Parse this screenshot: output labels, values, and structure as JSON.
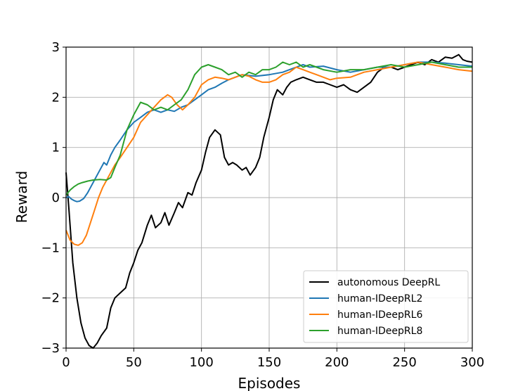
{
  "chart_data": {
    "type": "line",
    "title": "",
    "xlabel": "Episodes",
    "ylabel": "Reward",
    "xlim": [
      0,
      300
    ],
    "ylim": [
      -3,
      3
    ],
    "xticks": [
      "0",
      "50",
      "100",
      "150",
      "200",
      "250",
      "300"
    ],
    "yticks": [
      "−3",
      "−2",
      "−1",
      "0",
      "1",
      "2",
      "3"
    ],
    "grid": true,
    "legend_position": "lower-right",
    "series": [
      {
        "name": "autonomous DeepRL",
        "color": "#000000",
        "x": [
          0,
          2,
          5,
          8,
          11,
          14,
          17,
          20,
          23,
          26,
          30,
          33,
          36,
          40,
          44,
          47,
          50,
          53,
          56,
          60,
          63,
          66,
          70,
          73,
          76,
          80,
          83,
          86,
          90,
          93,
          96,
          100,
          103,
          106,
          110,
          112,
          114,
          117,
          120,
          123,
          126,
          130,
          133,
          136,
          140,
          143,
          146,
          150,
          153,
          156,
          160,
          163,
          166,
          170,
          175,
          180,
          185,
          190,
          195,
          200,
          205,
          210,
          215,
          220,
          225,
          230,
          235,
          240,
          245,
          250,
          255,
          260,
          265,
          270,
          275,
          280,
          285,
          290,
          293,
          296,
          300
        ],
        "y": [
          0.5,
          -0.2,
          -1.3,
          -2.0,
          -2.5,
          -2.8,
          -2.95,
          -3.0,
          -2.9,
          -2.75,
          -2.6,
          -2.2,
          -2.0,
          -1.9,
          -1.8,
          -1.5,
          -1.3,
          -1.05,
          -0.9,
          -0.55,
          -0.35,
          -0.6,
          -0.5,
          -0.3,
          -0.55,
          -0.3,
          -0.1,
          -0.2,
          0.1,
          0.05,
          0.3,
          0.55,
          0.9,
          1.2,
          1.35,
          1.3,
          1.25,
          0.8,
          0.65,
          0.7,
          0.65,
          0.55,
          0.6,
          0.45,
          0.6,
          0.8,
          1.2,
          1.6,
          1.95,
          2.15,
          2.05,
          2.2,
          2.3,
          2.35,
          2.4,
          2.35,
          2.3,
          2.3,
          2.25,
          2.2,
          2.25,
          2.15,
          2.1,
          2.2,
          2.3,
          2.5,
          2.6,
          2.6,
          2.55,
          2.6,
          2.65,
          2.7,
          2.65,
          2.75,
          2.7,
          2.8,
          2.78,
          2.85,
          2.75,
          2.72,
          2.7
        ]
      },
      {
        "name": "human-IDeepRL2",
        "color": "#1f77b4",
        "x": [
          0,
          2,
          4,
          6,
          8,
          10,
          13,
          16,
          20,
          24,
          28,
          30,
          33,
          36,
          40,
          45,
          50,
          55,
          60,
          65,
          70,
          75,
          80,
          85,
          90,
          95,
          100,
          105,
          110,
          115,
          120,
          125,
          130,
          140,
          150,
          160,
          165,
          170,
          175,
          180,
          190,
          200,
          210,
          220,
          230,
          240,
          250,
          260,
          270,
          280,
          290,
          300
        ],
        "y": [
          0.0,
          0.02,
          -0.03,
          -0.06,
          -0.08,
          -0.07,
          -0.02,
          0.1,
          0.3,
          0.5,
          0.7,
          0.65,
          0.85,
          1.0,
          1.15,
          1.35,
          1.5,
          1.6,
          1.7,
          1.75,
          1.7,
          1.75,
          1.72,
          1.8,
          1.85,
          1.95,
          2.05,
          2.15,
          2.2,
          2.28,
          2.35,
          2.4,
          2.45,
          2.42,
          2.45,
          2.5,
          2.55,
          2.6,
          2.65,
          2.6,
          2.62,
          2.55,
          2.5,
          2.55,
          2.6,
          2.6,
          2.65,
          2.7,
          2.7,
          2.68,
          2.65,
          2.62
        ]
      },
      {
        "name": "human-IDeepRL6",
        "color": "#ff7f0e",
        "x": [
          0,
          3,
          6,
          9,
          12,
          15,
          18,
          21,
          24,
          27,
          30,
          33,
          36,
          40,
          45,
          50,
          55,
          60,
          65,
          70,
          75,
          78,
          82,
          86,
          90,
          95,
          100,
          105,
          110,
          115,
          120,
          125,
          130,
          135,
          140,
          145,
          150,
          155,
          160,
          165,
          170,
          175,
          180,
          185,
          190,
          195,
          200,
          210,
          220,
          230,
          240,
          250,
          260,
          270,
          280,
          290,
          300
        ],
        "y": [
          -0.65,
          -0.85,
          -0.93,
          -0.95,
          -0.9,
          -0.75,
          -0.5,
          -0.25,
          0.0,
          0.2,
          0.35,
          0.5,
          0.65,
          0.8,
          1.0,
          1.2,
          1.5,
          1.65,
          1.8,
          1.95,
          2.05,
          2.0,
          1.85,
          1.75,
          1.85,
          2.0,
          2.25,
          2.35,
          2.4,
          2.38,
          2.35,
          2.4,
          2.45,
          2.42,
          2.35,
          2.3,
          2.3,
          2.35,
          2.45,
          2.5,
          2.6,
          2.55,
          2.5,
          2.45,
          2.4,
          2.35,
          2.38,
          2.4,
          2.5,
          2.55,
          2.6,
          2.65,
          2.7,
          2.65,
          2.6,
          2.55,
          2.52
        ]
      },
      {
        "name": "human-IDeepRL8",
        "color": "#2ca02c",
        "x": [
          0,
          3,
          6,
          9,
          12,
          16,
          20,
          25,
          30,
          33,
          36,
          40,
          45,
          50,
          55,
          60,
          65,
          70,
          75,
          80,
          85,
          90,
          95,
          100,
          105,
          110,
          115,
          120,
          125,
          130,
          135,
          140,
          145,
          150,
          155,
          160,
          165,
          170,
          175,
          180,
          185,
          190,
          200,
          210,
          220,
          230,
          240,
          250,
          260,
          270,
          280,
          290,
          300
        ],
        "y": [
          0.05,
          0.15,
          0.22,
          0.27,
          0.3,
          0.33,
          0.35,
          0.36,
          0.35,
          0.4,
          0.6,
          0.85,
          1.35,
          1.65,
          1.9,
          1.85,
          1.75,
          1.8,
          1.75,
          1.85,
          1.95,
          2.15,
          2.45,
          2.6,
          2.65,
          2.6,
          2.55,
          2.45,
          2.5,
          2.4,
          2.5,
          2.45,
          2.55,
          2.55,
          2.6,
          2.7,
          2.65,
          2.7,
          2.6,
          2.65,
          2.6,
          2.55,
          2.5,
          2.55,
          2.55,
          2.6,
          2.65,
          2.6,
          2.65,
          2.7,
          2.65,
          2.6,
          2.6
        ]
      }
    ]
  }
}
